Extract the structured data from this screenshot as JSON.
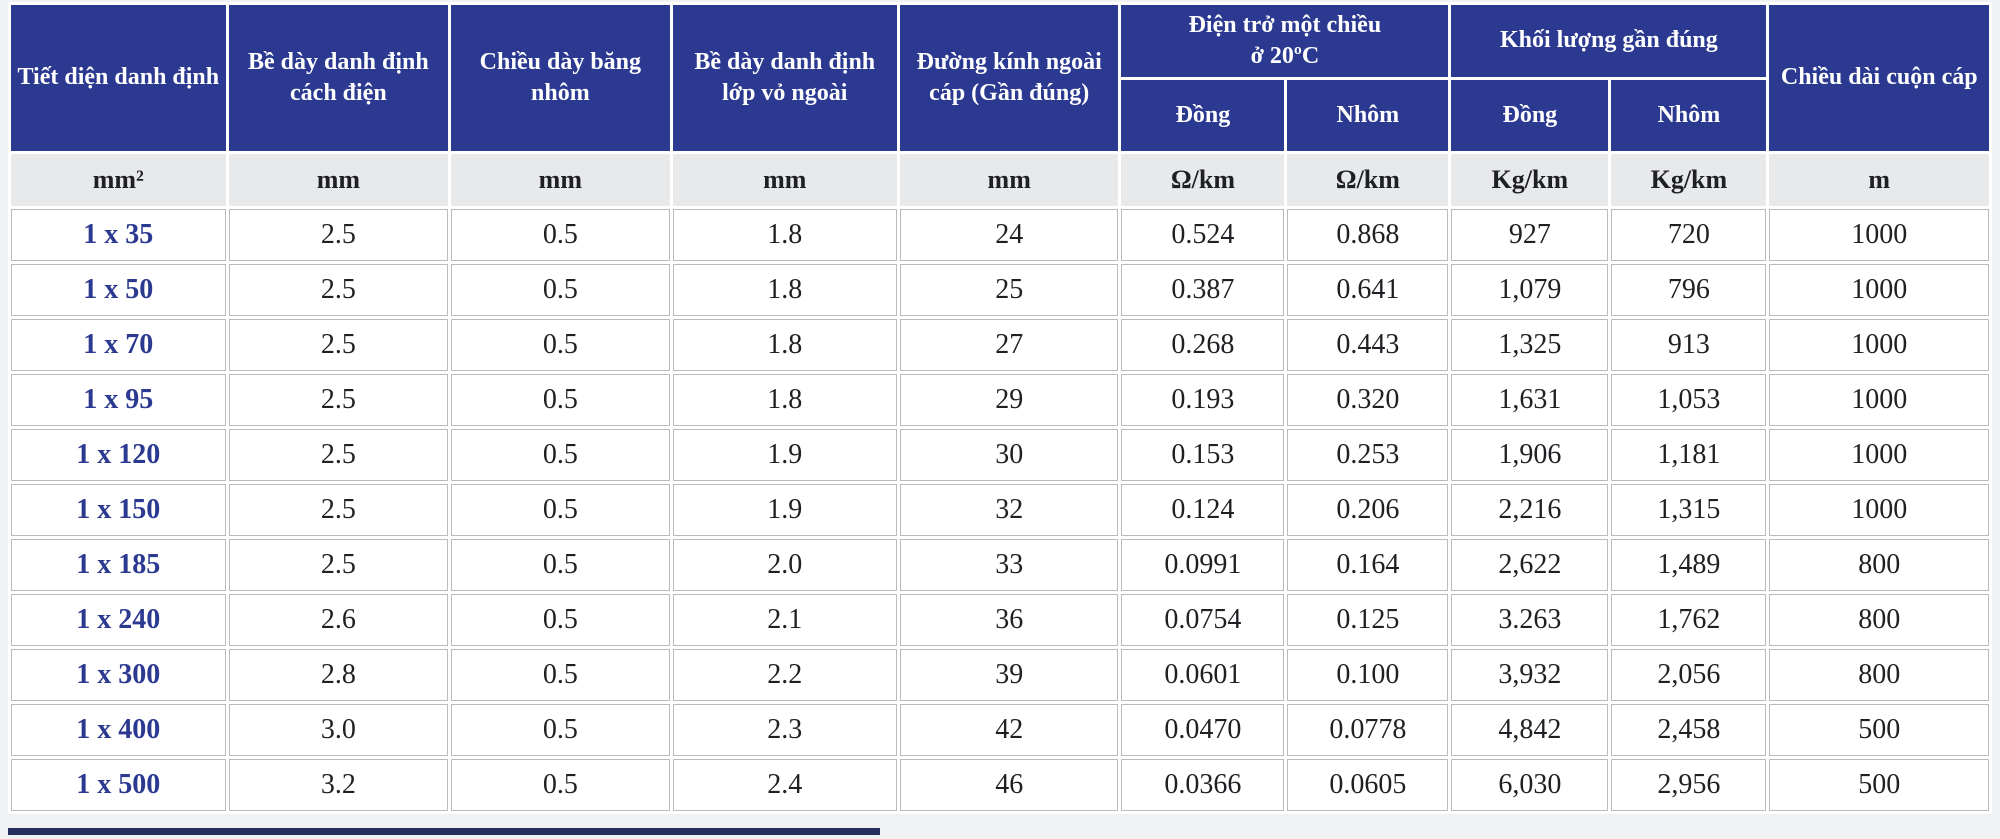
{
  "table": {
    "header": {
      "tiet_dien": "Tiết diện danh định",
      "be_day_cach_dien": "Bề dày danh định cách điện",
      "chieu_day_bang_nhom": "Chiều dày băng nhôm",
      "be_day_vo_ngoai": "Bề dày danh định lớp vỏ ngoài",
      "duong_kinh": "Đường kính ngoài cáp (Gần đúng)",
      "dien_tro_line1": "Điện trở một chiều",
      "dien_tro_line2": "ở 20ºC",
      "dien_tro_dong": "Đồng",
      "dien_tro_nhom": "Nhôm",
      "khoi_luong": "Khối lượng gần đúng",
      "khoi_luong_dong": "Đồng",
      "khoi_luong_nhom": "Nhôm",
      "chieu_dai": "Chiều dài cuộn cáp"
    },
    "units": [
      "mm²",
      "mm",
      "mm",
      "mm",
      "mm",
      "Ω/km",
      "Ω/km",
      "Kg/km",
      "Kg/km",
      "m"
    ],
    "rows": [
      [
        "1 x 35",
        "2.5",
        "0.5",
        "1.8",
        "24",
        "0.524",
        "0.868",
        "927",
        "720",
        "1000"
      ],
      [
        "1 x 50",
        "2.5",
        "0.5",
        "1.8",
        "25",
        "0.387",
        "0.641",
        "1,079",
        "796",
        "1000"
      ],
      [
        "1 x 70",
        "2.5",
        "0.5",
        "1.8",
        "27",
        "0.268",
        "0.443",
        "1,325",
        "913",
        "1000"
      ],
      [
        "1 x 95",
        "2.5",
        "0.5",
        "1.8",
        "29",
        "0.193",
        "0.320",
        "1,631",
        "1,053",
        "1000"
      ],
      [
        "1 x 120",
        "2.5",
        "0.5",
        "1.9",
        "30",
        "0.153",
        "0.253",
        "1,906",
        "1,181",
        "1000"
      ],
      [
        "1 x 150",
        "2.5",
        "0.5",
        "1.9",
        "32",
        "0.124",
        "0.206",
        "2,216",
        "1,315",
        "1000"
      ],
      [
        "1 x 185",
        "2.5",
        "0.5",
        "2.0",
        "33",
        "0.0991",
        "0.164",
        "2,622",
        "1,489",
        "800"
      ],
      [
        "1 x 240",
        "2.6",
        "0.5",
        "2.1",
        "36",
        "0.0754",
        "0.125",
        "3.263",
        "1,762",
        "800"
      ],
      [
        "1 x 300",
        "2.8",
        "0.5",
        "2.2",
        "39",
        "0.0601",
        "0.100",
        "3,932",
        "2,056",
        "800"
      ],
      [
        "1 x 400",
        "3.0",
        "0.5",
        "2.3",
        "42",
        "0.0470",
        "0.0778",
        "4,842",
        "2,458",
        "500"
      ],
      [
        "1 x 500",
        "3.2",
        "0.5",
        "2.4",
        "46",
        "0.0366",
        "0.0605",
        "6,030",
        "2,956",
        "500"
      ]
    ]
  },
  "colors": {
    "header_bg": "#2b3990",
    "header_text": "#ffffff",
    "units_bg": "#e8e9ea",
    "units_text": "#1f2023",
    "row_label_text": "#2b3990",
    "cell_text": "#1f2023",
    "grid_line": "#b9bbbd",
    "page_margin_bg": "#f0f1f2",
    "bottom_bar": "#262e5f"
  }
}
